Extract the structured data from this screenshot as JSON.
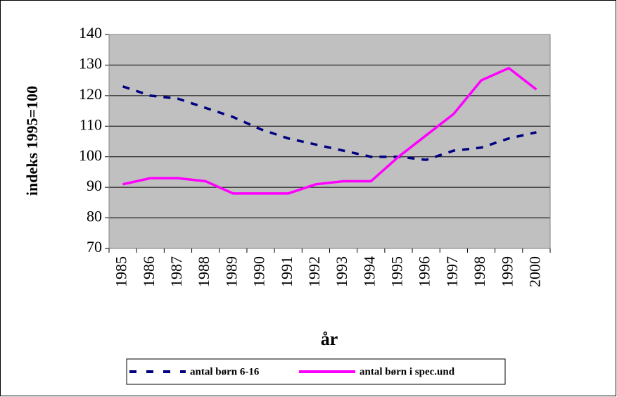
{
  "chart_data": {
    "type": "line",
    "x_label": "år",
    "y_label": "indeks 1995=100",
    "categories": [
      "1985",
      "1986",
      "1987",
      "1988",
      "1989",
      "1990",
      "1991",
      "1992",
      "1993",
      "1994",
      "1995",
      "1996",
      "1997",
      "1998",
      "1999",
      "2000"
    ],
    "series": [
      {
        "name": "antal børn 6-16",
        "color": "#000080",
        "dash": true,
        "values": [
          123,
          120,
          119,
          116,
          113,
          109,
          106,
          104,
          102,
          100,
          100,
          99,
          102,
          103,
          106,
          108
        ]
      },
      {
        "name": "antal børn i spec.und",
        "color": "#ff00ff",
        "dash": false,
        "values": [
          91,
          93,
          93,
          92,
          88,
          88,
          88,
          91,
          92,
          92,
          100,
          107,
          114,
          125,
          129,
          122
        ]
      }
    ],
    "ylim": [
      70,
      140
    ],
    "yticks": [
      70,
      80,
      90,
      100,
      110,
      120,
      130,
      140
    ],
    "grid": true,
    "plot_background": "#c0c0c0",
    "legend": "bottom"
  }
}
